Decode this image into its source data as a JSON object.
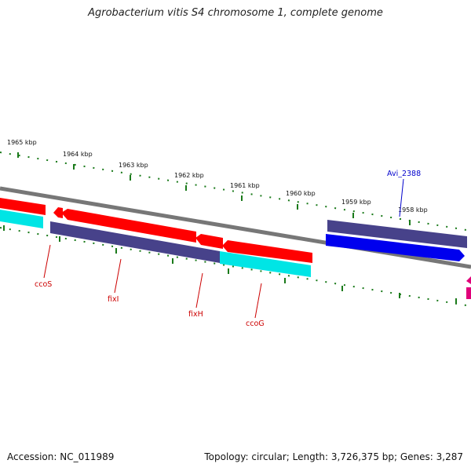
{
  "header": {
    "title": "Agrobacterium vitis S4 chromosome 1, complete genome"
  },
  "footer": {
    "accession": "Accession: NC_011989",
    "topology": "Topology: circular; Length: 3,726,375 bp; Genes: 3,287"
  },
  "ruler": {
    "labels": [
      "1965 kbp",
      "1964 kbp",
      "1963 kbp",
      "1962 kbp",
      "1961 kbp",
      "1960 kbp",
      "1959 kbp",
      "1958 kbp"
    ]
  },
  "genes": [
    {
      "name": "ccoS",
      "color": "#cc0000"
    },
    {
      "name": "fixI",
      "color": "#cc0000"
    },
    {
      "name": "fixH",
      "color": "#cc0000"
    },
    {
      "name": "ccoG",
      "color": "#cc0000"
    },
    {
      "name": "Avi_2388",
      "color": "#0000cc"
    }
  ],
  "colors": {
    "red_feature": "#ff0000",
    "cyan_feature": "#00e5e5",
    "slate_feature": "#47428a",
    "blue_feature": "#0000ee",
    "magenta_feature": "#e0007a",
    "backbone": "#777777",
    "tick": "#1a7a1a"
  }
}
